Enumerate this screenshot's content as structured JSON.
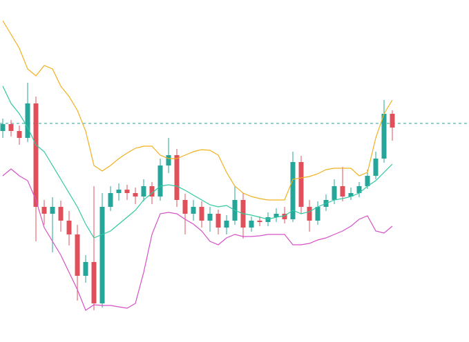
{
  "chart_data": {
    "type": "candlestick",
    "ylim": [
      0,
      496
    ],
    "up_color": "#26a69a",
    "down_color": "#e0505a",
    "open": [
      306,
      316,
      306,
      296,
      346,
      196,
      186,
      196,
      176,
      156,
      96,
      116,
      56,
      196,
      216,
      221,
      216,
      211,
      226,
      211,
      256,
      271,
      206,
      186,
      196,
      176,
      186,
      166,
      176,
      206,
      166,
      176,
      174,
      181,
      186,
      178,
      261,
      196,
      176,
      196,
      206,
      226,
      211,
      216,
      226,
      241,
      266,
      331
    ],
    "high": [
      324,
      322,
      314,
      376,
      356,
      206,
      210,
      205,
      190,
      170,
      126,
      226,
      216,
      226,
      230,
      228,
      224,
      236,
      232,
      266,
      296,
      280,
      215,
      206,
      204,
      196,
      192,
      184,
      226,
      216,
      182,
      182,
      188,
      194,
      196,
      276,
      270,
      206,
      204,
      214,
      236,
      254,
      224,
      232,
      250,
      276,
      351,
      336
    ],
    "low": [
      296,
      298,
      286,
      290,
      146,
      170,
      130,
      160,
      140,
      60,
      86,
      46,
      50,
      190,
      205,
      206,
      200,
      204,
      200,
      205,
      245,
      196,
      156,
      176,
      166,
      160,
      156,
      156,
      170,
      150,
      160,
      168,
      168,
      174,
      172,
      174,
      186,
      160,
      170,
      190,
      200,
      204,
      206,
      210,
      222,
      236,
      260,
      292
    ],
    "close": [
      316,
      306,
      296,
      346,
      196,
      186,
      196,
      176,
      156,
      96,
      116,
      56,
      196,
      216,
      221,
      216,
      211,
      226,
      211,
      256,
      271,
      206,
      186,
      196,
      176,
      186,
      166,
      176,
      206,
      166,
      176,
      174,
      181,
      186,
      178,
      261,
      196,
      176,
      196,
      206,
      226,
      211,
      216,
      226,
      241,
      266,
      331,
      311
    ],
    "lines": [
      {
        "color": "#f2b01e",
        "values": [
          466,
          446,
          426,
          396,
          386,
          401,
          396,
          371,
          356,
          336,
          306,
          256,
          248,
          256,
          266,
          274,
          281,
          284,
          284,
          271,
          266,
          266,
          271,
          276,
          279,
          278,
          271,
          246,
          226,
          216,
          211,
          208,
          206,
          206,
          206,
          236,
          238,
          240,
          244,
          250,
          252,
          252,
          252,
          241,
          246,
          296,
          331,
          351
        ]
      },
      {
        "color": "#2ec9a0",
        "values": [
          371,
          346,
          331,
          311,
          286,
          276,
          256,
          236,
          216,
          196,
          171,
          151,
          156,
          161,
          171,
          181,
          191,
          206,
          216,
          226,
          228,
          226,
          220,
          213,
          206,
          199,
          196,
          198,
          191,
          186,
          184,
          181,
          178,
          181,
          183,
          191,
          186,
          189,
          196,
          201,
          206,
          208,
          211,
          216,
          226,
          234,
          246,
          258
        ]
      },
      {
        "color": "#d64fc8",
        "values": [
          241,
          251,
          241,
          234,
          206,
          166,
          146,
          126,
          101,
          76,
          46,
          54,
          53,
          53,
          51,
          49,
          56,
          101,
          156,
          186,
          188,
          186,
          178,
          171,
          161,
          146,
          141,
          151,
          156,
          153,
          153,
          154,
          156,
          156,
          156,
          141,
          141,
          143,
          148,
          151,
          156,
          161,
          168,
          178,
          183,
          161,
          158,
          168
        ]
      }
    ],
    "hline": {
      "value": 317,
      "color": "#26a69a"
    }
  }
}
